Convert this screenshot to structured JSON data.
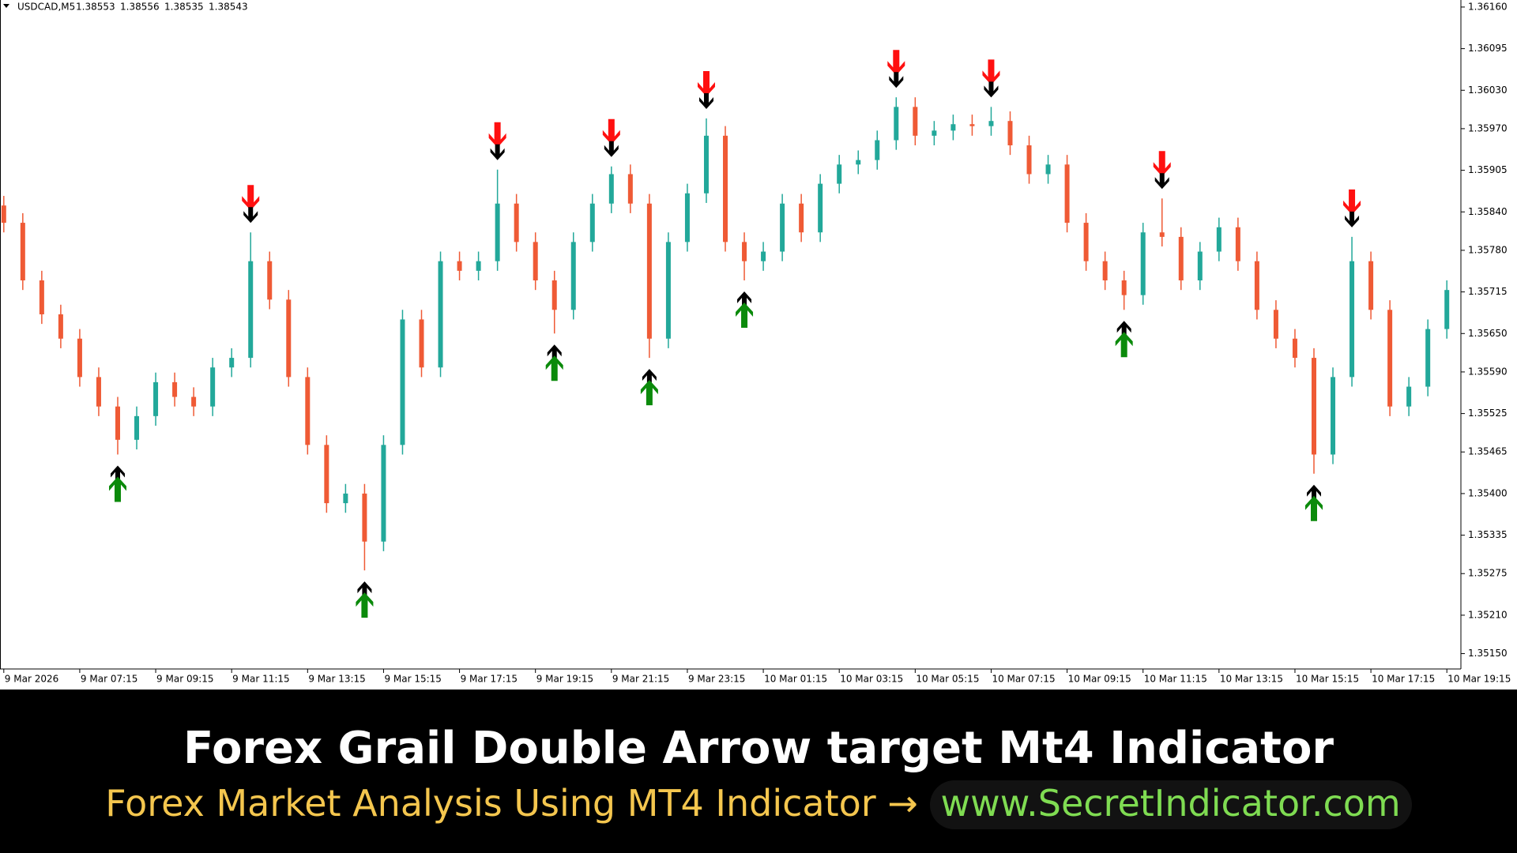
{
  "chart_data": {
    "type": "candlestick",
    "symbol": "USDCAD,M5",
    "quote": [
      1.38553,
      1.38556,
      1.38535,
      1.38543
    ],
    "x": [
      0,
      0.5,
      1,
      1.5,
      2,
      2.5,
      3,
      3.5,
      4,
      4.5,
      5,
      5.5,
      6,
      6.5,
      7,
      7.5,
      8,
      8.5,
      9,
      9.5,
      10,
      10.5,
      11,
      11.5,
      12,
      12.5,
      13,
      13.5,
      14,
      14.5,
      15,
      15.5,
      16,
      16.5,
      17,
      17.5,
      18,
      18.5,
      19,
      19.5,
      20,
      20.5,
      21,
      21.5,
      22,
      22.5,
      23,
      23.5,
      24,
      24.5,
      25,
      25.5,
      26,
      26.5,
      27,
      27.5,
      28,
      28.5,
      29,
      29.5,
      30,
      30.5,
      31,
      31.5,
      32,
      32.5,
      33,
      33.5,
      34,
      34.5,
      35,
      35.5,
      36,
      36.5,
      37,
      37.5,
      38
    ],
    "open": [
      1.3585,
      1.35823,
      1.35733,
      1.3568,
      1.35642,
      1.35582,
      1.35536,
      1.35484,
      1.35521,
      1.35574,
      1.35551,
      1.35536,
      1.35597,
      1.35612,
      1.35763,
      1.35703,
      1.35582,
      1.35476,
      1.35385,
      1.354,
      1.35325,
      1.35476,
      1.35672,
      1.35597,
      1.35763,
      1.35748,
      1.35763,
      1.35853,
      1.35793,
      1.35733,
      1.35687,
      1.35793,
      1.35853,
      1.35899,
      1.35853,
      1.35642,
      1.35793,
      1.35869,
      1.35959,
      1.35793,
      1.35763,
      1.35778,
      1.35853,
      1.35808,
      1.35884,
      1.35914,
      1.35921,
      1.35952,
      1.36004,
      1.35959,
      1.35967,
      1.35977,
      1.35974,
      1.35982,
      1.35944,
      1.35899,
      1.35914,
      1.35823,
      1.35763,
      1.35733,
      1.3571,
      1.35808,
      1.35801,
      1.35733,
      1.35778,
      1.35816,
      1.35763,
      1.35687,
      1.35642,
      1.35612,
      1.35461,
      1.35582,
      1.35763,
      1.35687,
      1.35536,
      1.35567,
      1.35657
    ],
    "high": [
      1.35865,
      1.35838,
      1.35748,
      1.35695,
      1.35657,
      1.35597,
      1.35551,
      1.35536,
      1.35589,
      1.35589,
      1.35566,
      1.35612,
      1.35627,
      1.35808,
      1.35778,
      1.35718,
      1.35597,
      1.35491,
      1.35415,
      1.35415,
      1.35491,
      1.35687,
      1.35687,
      1.35778,
      1.35778,
      1.35778,
      1.35906,
      1.35868,
      1.35808,
      1.35748,
      1.35808,
      1.35868,
      1.35911,
      1.35914,
      1.35868,
      1.35808,
      1.35884,
      1.35986,
      1.35974,
      1.35808,
      1.35793,
      1.35868,
      1.35868,
      1.35899,
      1.35929,
      1.35936,
      1.35967,
      1.36019,
      1.36019,
      1.35982,
      1.35992,
      1.35992,
      1.36004,
      1.35997,
      1.35959,
      1.35929,
      1.35929,
      1.35838,
      1.35778,
      1.35748,
      1.35823,
      1.35861,
      1.35816,
      1.35793,
      1.35831,
      1.35831,
      1.35778,
      1.35702,
      1.35657,
      1.35627,
      1.35597,
      1.35801,
      1.35778,
      1.35702,
      1.35582,
      1.35672,
      1.35733
    ],
    "low": [
      1.35808,
      1.35718,
      1.35665,
      1.35627,
      1.35567,
      1.35521,
      1.35461,
      1.35469,
      1.35506,
      1.35536,
      1.35521,
      1.35521,
      1.35582,
      1.35597,
      1.35688,
      1.35567,
      1.35461,
      1.3537,
      1.3537,
      1.3528,
      1.3531,
      1.35461,
      1.35582,
      1.35582,
      1.35733,
      1.35733,
      1.35748,
      1.35778,
      1.35718,
      1.3565,
      1.35672,
      1.35778,
      1.35838,
      1.35838,
      1.35612,
      1.35627,
      1.35778,
      1.35854,
      1.35778,
      1.35733,
      1.35748,
      1.35763,
      1.35793,
      1.35793,
      1.35869,
      1.35899,
      1.35906,
      1.35937,
      1.35944,
      1.35944,
      1.35952,
      1.35959,
      1.35959,
      1.35929,
      1.35884,
      1.35884,
      1.35808,
      1.35748,
      1.35718,
      1.35687,
      1.35695,
      1.35786,
      1.35718,
      1.35718,
      1.35763,
      1.35748,
      1.35672,
      1.35627,
      1.35597,
      1.35431,
      1.35446,
      1.35567,
      1.35672,
      1.35521,
      1.35521,
      1.35552,
      1.35642
    ],
    "close": [
      1.35823,
      1.35733,
      1.3568,
      1.35642,
      1.35582,
      1.35536,
      1.35484,
      1.35521,
      1.35574,
      1.35551,
      1.35536,
      1.35597,
      1.35612,
      1.35763,
      1.35703,
      1.35582,
      1.35476,
      1.35385,
      1.354,
      1.35325,
      1.35476,
      1.35672,
      1.35597,
      1.35763,
      1.35748,
      1.35763,
      1.35853,
      1.35793,
      1.35733,
      1.35687,
      1.35793,
      1.35853,
      1.35899,
      1.35853,
      1.35642,
      1.35793,
      1.35869,
      1.35959,
      1.35793,
      1.35763,
      1.35778,
      1.35853,
      1.35808,
      1.35884,
      1.35914,
      1.35921,
      1.35952,
      1.36004,
      1.35959,
      1.35967,
      1.35977,
      1.35974,
      1.35982,
      1.35944,
      1.35899,
      1.35914,
      1.35823,
      1.35763,
      1.35733,
      1.3571,
      1.35808,
      1.35801,
      1.35733,
      1.35778,
      1.35816,
      1.35763,
      1.35687,
      1.35642,
      1.35612,
      1.35461,
      1.35582,
      1.35763,
      1.35687,
      1.35536,
      1.35567,
      1.35657,
      1.35718
    ],
    "up_color": "#22a89a",
    "down_color": "#ef5a35",
    "xlim": [
      -0.1,
      38.37
    ],
    "ylim": [
      1.35126,
      1.36171
    ],
    "xticks": [
      {
        "value": 0,
        "label": "9 Mar 2026"
      },
      {
        "value": 2,
        "label": "9 Mar 07:15"
      },
      {
        "value": 4,
        "label": "9 Mar 09:15"
      },
      {
        "value": 6,
        "label": "9 Mar 11:15"
      },
      {
        "value": 8,
        "label": "9 Mar 13:15"
      },
      {
        "value": 10,
        "label": "9 Mar 15:15"
      },
      {
        "value": 12,
        "label": "9 Mar 17:15"
      },
      {
        "value": 14,
        "label": "9 Mar 19:15"
      },
      {
        "value": 16,
        "label": "9 Mar 21:15"
      },
      {
        "value": 18,
        "label": "9 Mar 23:15"
      },
      {
        "value": 20,
        "label": "10 Mar 01:15"
      },
      {
        "value": 22,
        "label": "10 Mar 03:15"
      },
      {
        "value": 24,
        "label": "10 Mar 05:15"
      },
      {
        "value": 26,
        "label": "10 Mar 07:15"
      },
      {
        "value": 28,
        "label": "10 Mar 09:15"
      },
      {
        "value": 30,
        "label": "10 Mar 11:15"
      },
      {
        "value": 32,
        "label": "10 Mar 13:15"
      },
      {
        "value": 34,
        "label": "10 Mar 15:15"
      },
      {
        "value": 36,
        "label": "10 Mar 17:15"
      },
      {
        "value": 38,
        "label": "10 Mar 19:15"
      }
    ],
    "yticks": [
      {
        "value": 1.3616,
        "label": "1.36160"
      },
      1.36095,
      {
        "value": 1.3603,
        "label": "1.36030"
      },
      {
        "value": 1.3597,
        "label": "1.35970"
      },
      1.35905,
      {
        "value": 1.3584,
        "label": "1.35840"
      },
      {
        "value": 1.3578,
        "label": "1.35780"
      },
      1.35715,
      {
        "value": 1.3565,
        "label": "1.35650"
      },
      {
        "value": 1.3559,
        "label": "1.35590"
      },
      1.35525,
      1.35465,
      {
        "value": 1.354,
        "label": "1.35400"
      },
      1.35335,
      1.35275,
      {
        "value": 1.3521,
        "label": "1.35210"
      },
      {
        "value": 1.3515,
        "label": "1.35150"
      }
    ],
    "up_arrows": {
      "x": [
        3,
        9.5,
        14.5,
        17,
        19.5,
        29.5,
        34.5
      ],
      "y": [
        1.35461,
        1.3528,
        1.3565,
        1.35612,
        1.35733,
        1.35687,
        1.35431
      ],
      "color": "#0b8a0b"
    },
    "down_arrows": {
      "x": [
        6.5,
        13,
        16,
        18.5,
        23.5,
        26,
        30.5,
        35.5
      ],
      "y": [
        1.35808,
        1.35906,
        1.35911,
        1.35986,
        1.36019,
        1.36004,
        1.35861,
        1.35801
      ],
      "color": "#ff1010"
    }
  },
  "banner": {
    "title": "Forex Grail Double Arrow target Mt4 Indicator",
    "subtitle": "Forex Market Analysis Using MT4 Indicator →",
    "link": "www.SecretIndicator.com"
  }
}
